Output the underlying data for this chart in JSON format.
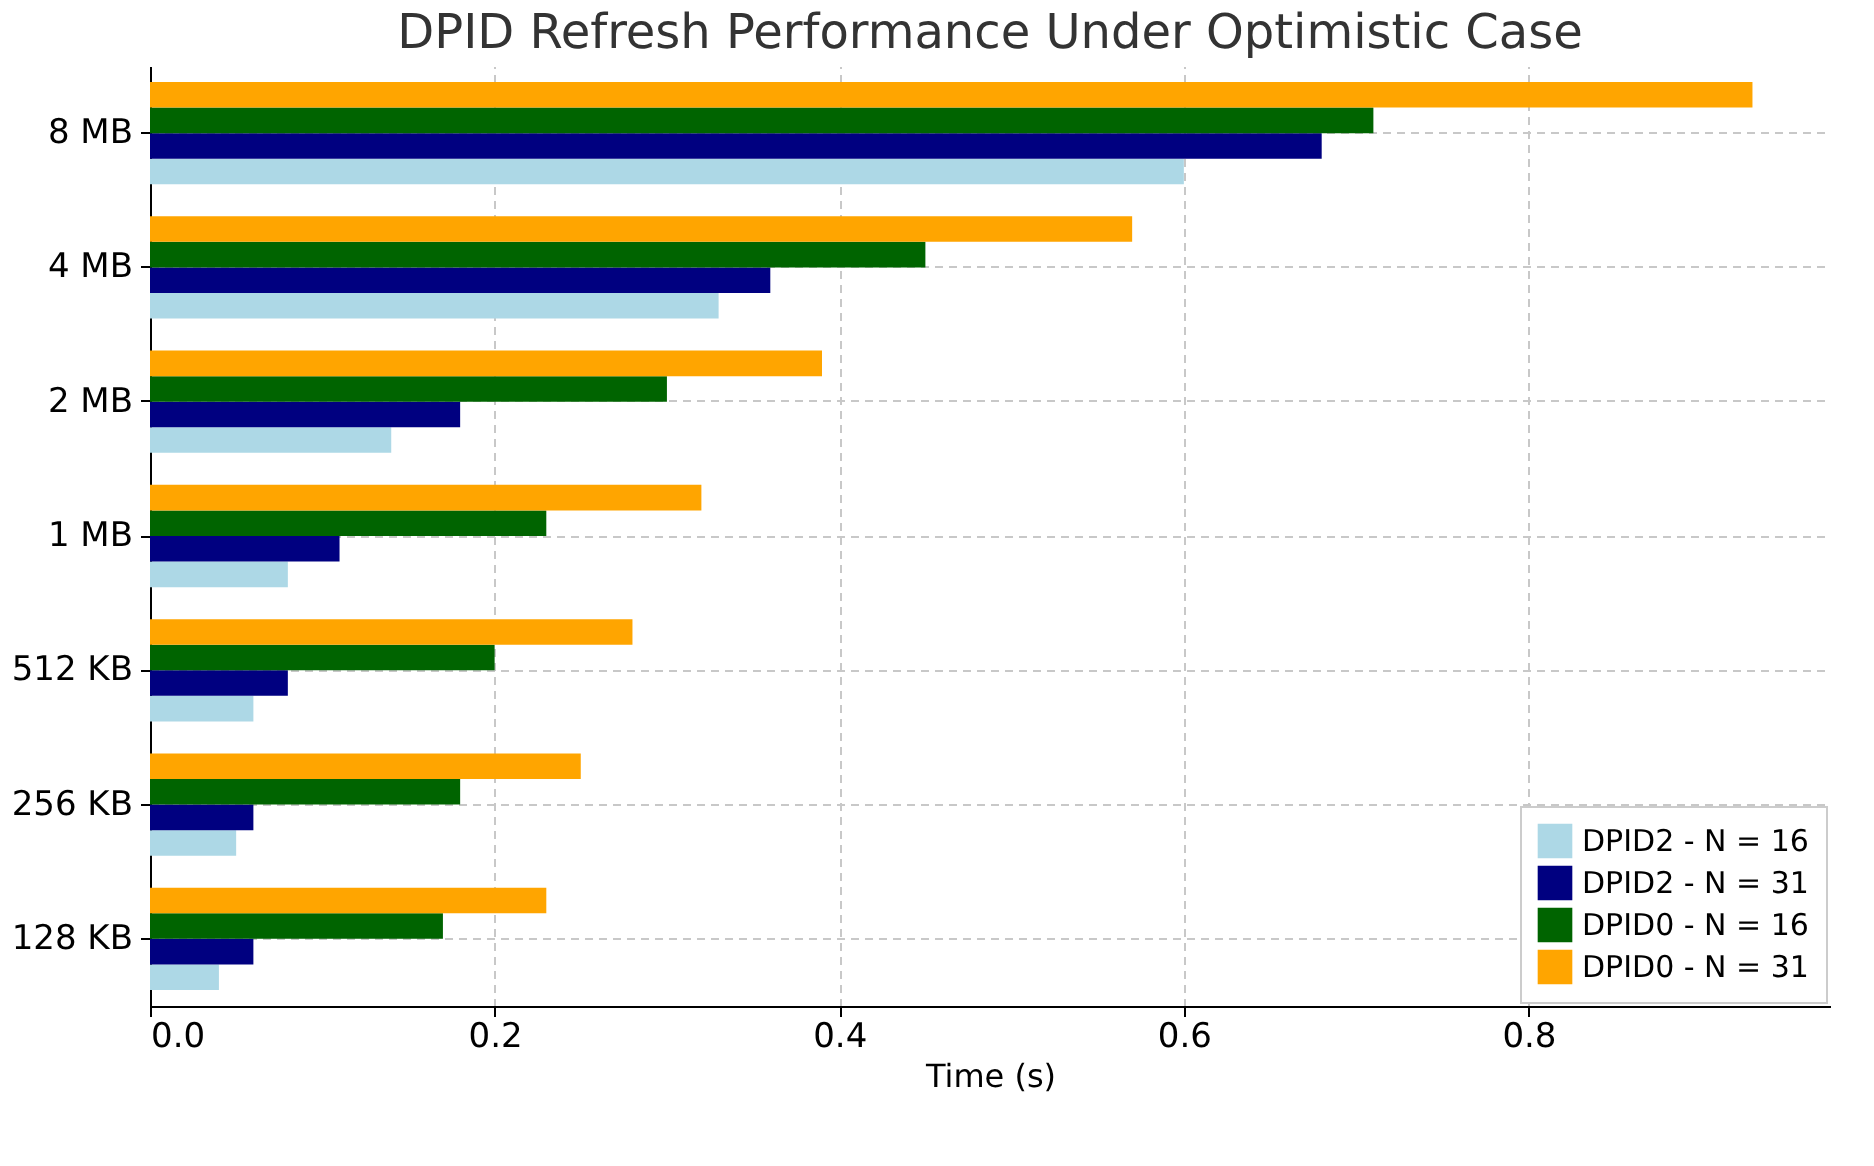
{
  "chart_data": {
    "type": "bar",
    "orientation": "horizontal",
    "title": "DPID Refresh Performance Under Optimistic Case",
    "xlabel": "Time (s)",
    "categories": [
      "8 MB",
      "4 MB",
      "2 MB",
      "1 MB",
      "512 KB",
      "256 KB",
      "128 KB"
    ],
    "series": [
      {
        "name": "DPID2 - N = 16",
        "color": "#add8e6",
        "values": [
          0.6,
          0.33,
          0.14,
          0.08,
          0.06,
          0.05,
          0.04
        ]
      },
      {
        "name": "DPID2 - N = 31",
        "color": "#000080",
        "values": [
          0.68,
          0.36,
          0.18,
          0.11,
          0.08,
          0.06,
          0.06
        ]
      },
      {
        "name": "DPID0 - N = 16",
        "color": "#006400",
        "values": [
          0.71,
          0.45,
          0.3,
          0.23,
          0.2,
          0.18,
          0.17
        ]
      },
      {
        "name": "DPID0 - N = 31",
        "color": "#ffa500",
        "values": [
          0.93,
          0.57,
          0.39,
          0.32,
          0.28,
          0.25,
          0.23
        ]
      }
    ],
    "xlim": [
      0,
      0.975
    ],
    "xticks": [
      {
        "value": 0,
        "label": "0.0"
      },
      0.2,
      0.4,
      0.6,
      0.8
    ],
    "grid": true,
    "legend": "bottom right"
  }
}
